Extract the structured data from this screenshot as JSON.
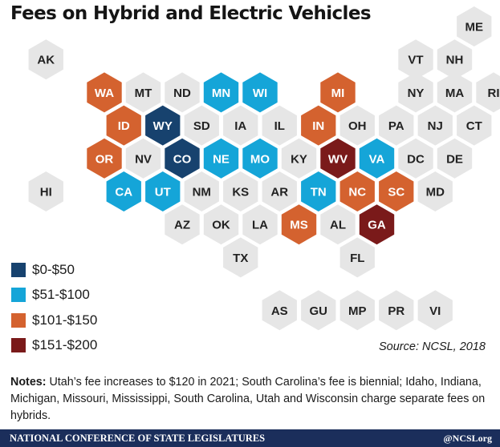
{
  "title": "Fees on Hybrid and Electric Vehicles",
  "colors": {
    "none": "#e6e6e6",
    "tier1": "#17426e",
    "tier2": "#15a5d8",
    "tier3": "#d4622f",
    "tier4": "#7a1a1a",
    "label_dark": "#222222",
    "label_light": "#ffffff"
  },
  "legend": [
    {
      "label": "$0-$50",
      "tier": "tier1"
    },
    {
      "label": "$51-$100",
      "tier": "tier2"
    },
    {
      "label": "$101-$150",
      "tier": "tier3"
    },
    {
      "label": "$151-$200",
      "tier": "tier4"
    }
  ],
  "states": [
    {
      "code": "ME",
      "row": 0,
      "col": 11.5,
      "tier": "none"
    },
    {
      "code": "AK",
      "row": 1,
      "col": 0.5,
      "tier": "none"
    },
    {
      "code": "VT",
      "row": 1,
      "col": 10,
      "tier": "none"
    },
    {
      "code": "NH",
      "row": 1,
      "col": 11,
      "tier": "none"
    },
    {
      "code": "WA",
      "row": 2,
      "col": 2,
      "tier": "tier3"
    },
    {
      "code": "MT",
      "row": 2,
      "col": 3,
      "tier": "none"
    },
    {
      "code": "ND",
      "row": 2,
      "col": 4,
      "tier": "none"
    },
    {
      "code": "MN",
      "row": 2,
      "col": 5,
      "tier": "tier2"
    },
    {
      "code": "WI",
      "row": 2,
      "col": 6,
      "tier": "tier2"
    },
    {
      "code": "MI",
      "row": 2,
      "col": 8,
      "tier": "tier3"
    },
    {
      "code": "NY",
      "row": 2,
      "col": 10,
      "tier": "none"
    },
    {
      "code": "MA",
      "row": 2,
      "col": 11,
      "tier": "none"
    },
    {
      "code": "RI",
      "row": 2,
      "col": 12,
      "tier": "none"
    },
    {
      "code": "ID",
      "row": 3,
      "col": 2.5,
      "tier": "tier3"
    },
    {
      "code": "WY",
      "row": 3,
      "col": 3.5,
      "tier": "tier1"
    },
    {
      "code": "SD",
      "row": 3,
      "col": 4.5,
      "tier": "none"
    },
    {
      "code": "IA",
      "row": 3,
      "col": 5.5,
      "tier": "none"
    },
    {
      "code": "IL",
      "row": 3,
      "col": 6.5,
      "tier": "none"
    },
    {
      "code": "IN",
      "row": 3,
      "col": 7.5,
      "tier": "tier3"
    },
    {
      "code": "OH",
      "row": 3,
      "col": 8.5,
      "tier": "none"
    },
    {
      "code": "PA",
      "row": 3,
      "col": 9.5,
      "tier": "none"
    },
    {
      "code": "NJ",
      "row": 3,
      "col": 10.5,
      "tier": "none"
    },
    {
      "code": "CT",
      "row": 3,
      "col": 11.5,
      "tier": "none"
    },
    {
      "code": "OR",
      "row": 4,
      "col": 2,
      "tier": "tier3"
    },
    {
      "code": "NV",
      "row": 4,
      "col": 3,
      "tier": "none"
    },
    {
      "code": "CO",
      "row": 4,
      "col": 4,
      "tier": "tier1"
    },
    {
      "code": "NE",
      "row": 4,
      "col": 5,
      "tier": "tier2"
    },
    {
      "code": "MO",
      "row": 4,
      "col": 6,
      "tier": "tier2"
    },
    {
      "code": "KY",
      "row": 4,
      "col": 7,
      "tier": "none"
    },
    {
      "code": "WV",
      "row": 4,
      "col": 8,
      "tier": "tier4"
    },
    {
      "code": "VA",
      "row": 4,
      "col": 9,
      "tier": "tier2"
    },
    {
      "code": "DC",
      "row": 4,
      "col": 10,
      "tier": "none"
    },
    {
      "code": "DE",
      "row": 4,
      "col": 11,
      "tier": "none"
    },
    {
      "code": "HI",
      "row": 5,
      "col": 0.5,
      "tier": "none"
    },
    {
      "code": "CA",
      "row": 5,
      "col": 2.5,
      "tier": "tier2"
    },
    {
      "code": "UT",
      "row": 5,
      "col": 3.5,
      "tier": "tier2"
    },
    {
      "code": "NM",
      "row": 5,
      "col": 4.5,
      "tier": "none"
    },
    {
      "code": "KS",
      "row": 5,
      "col": 5.5,
      "tier": "none"
    },
    {
      "code": "AR",
      "row": 5,
      "col": 6.5,
      "tier": "none"
    },
    {
      "code": "TN",
      "row": 5,
      "col": 7.5,
      "tier": "tier2"
    },
    {
      "code": "NC",
      "row": 5,
      "col": 8.5,
      "tier": "tier3"
    },
    {
      "code": "SC",
      "row": 5,
      "col": 9.5,
      "tier": "tier3"
    },
    {
      "code": "MD",
      "row": 5,
      "col": 10.5,
      "tier": "none"
    },
    {
      "code": "AZ",
      "row": 6,
      "col": 4,
      "tier": "none"
    },
    {
      "code": "OK",
      "row": 6,
      "col": 5,
      "tier": "none"
    },
    {
      "code": "LA",
      "row": 6,
      "col": 6,
      "tier": "none"
    },
    {
      "code": "MS",
      "row": 6,
      "col": 7,
      "tier": "tier3"
    },
    {
      "code": "AL",
      "row": 6,
      "col": 8,
      "tier": "none"
    },
    {
      "code": "GA",
      "row": 6,
      "col": 9,
      "tier": "tier4"
    },
    {
      "code": "TX",
      "row": 7,
      "col": 5.5,
      "tier": "none"
    },
    {
      "code": "FL",
      "row": 7,
      "col": 8.5,
      "tier": "none"
    },
    {
      "code": "AS",
      "row": 8.6,
      "col": 6.5,
      "tier": "none"
    },
    {
      "code": "GU",
      "row": 8.6,
      "col": 7.5,
      "tier": "none"
    },
    {
      "code": "MP",
      "row": 8.6,
      "col": 8.5,
      "tier": "none"
    },
    {
      "code": "PR",
      "row": 8.6,
      "col": 9.5,
      "tier": "none"
    },
    {
      "code": "VI",
      "row": 8.6,
      "col": 10.5,
      "tier": "none"
    }
  ],
  "source": "Source: NCSL, 2018",
  "notes": {
    "label": "Notes:",
    "text": " Utah’s fee increases to $120 in 2021; South Carolina’s fee is biennial; Idaho, Indiana, Michigan, Missouri, Mississippi, South Carolina, Utah and Wisconsin charge separate fees on hybrids."
  },
  "footer": {
    "organization": "NATIONAL CONFERENCE OF STATE LEGISLATURES",
    "handle": "@NCSLorg"
  }
}
